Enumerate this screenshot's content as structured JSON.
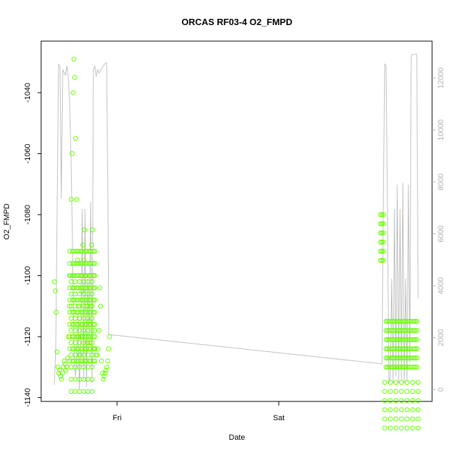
{
  "chart_data": {
    "type": "scatter",
    "title": "ORCAS RF03-4 O2_FMPD",
    "xlabel": "Date",
    "ylabel": "O2_FMPD",
    "x_ticks": [
      "Fri",
      "Sat"
    ],
    "y_ticks": [
      "-1040",
      "-1060",
      "-1080",
      "-1100",
      "-1120",
      "-1140"
    ],
    "y2_ticks": [
      "12000",
      "10000",
      "8000",
      "6000",
      "4000",
      "2000",
      "0"
    ],
    "ylim": [
      -1140,
      -1027
    ],
    "y2lim": [
      0,
      12500
    ],
    "colors": {
      "points": "#66ff00",
      "altitude_line": "#c0c0c0",
      "axis": "#000000",
      "right_axis": "#b0b0b0"
    },
    "series": [
      {
        "kind": "points",
        "segments": [
          [
            [
              0,
              -1102
            ],
            [
              1,
              -1105
            ],
            [
              2,
              -1112
            ],
            [
              3,
              -1125
            ],
            [
              4,
              -1130
            ],
            [
              5,
              -1132
            ],
            [
              6,
              -1131
            ],
            [
              7,
              -1133
            ],
            [
              8,
              -1134
            ],
            [
              9,
              -1132
            ],
            [
              10,
              -1130
            ],
            [
              11,
              -1128
            ],
            [
              12,
              -1129
            ],
            [
              13,
              -1131
            ],
            [
              14,
              -1130
            ],
            [
              15,
              -1127
            ],
            [
              16,
              -1120
            ],
            [
              17,
              -1110
            ],
            [
              18,
              -1100
            ],
            [
              19,
              -1075
            ],
            [
              20,
              -1060
            ],
            [
              21,
              -1040
            ],
            [
              22,
              -1029
            ],
            [
              23,
              -1035
            ],
            [
              24,
              -1055
            ],
            [
              25,
              -1075
            ],
            [
              26,
              -1095
            ],
            [
              27,
              -1110
            ],
            [
              28,
              -1120
            ],
            [
              29,
              -1126
            ],
            [
              30,
              -1120
            ],
            [
              31,
              -1105
            ],
            [
              32,
              -1090
            ],
            [
              33,
              -1095
            ],
            [
              34,
              -1085
            ],
            [
              35,
              -1100
            ],
            [
              36,
              -1110
            ],
            [
              37,
              -1122
            ],
            [
              38,
              -1120
            ],
            [
              39,
              -1115
            ],
            [
              40,
              -1122
            ],
            [
              41,
              -1110
            ],
            [
              42,
              -1090
            ],
            [
              43,
              -1085
            ],
            [
              44,
              -1100
            ],
            [
              45,
              -1118
            ],
            [
              46,
              -1124
            ],
            [
              47,
              -1126
            ],
            [
              48,
              -1126
            ],
            [
              49,
              -1124
            ],
            [
              50,
              -1118
            ],
            [
              51,
              -1104
            ],
            [
              52,
              -1110
            ],
            [
              53,
              -1128
            ],
            [
              54,
              -1132
            ],
            [
              55,
              -1134
            ],
            [
              56,
              -1133
            ],
            [
              57,
              -1132
            ],
            [
              58,
              -1131
            ],
            [
              59,
              -1130
            ],
            [
              60,
              -1128
            ],
            [
              61,
              -1124
            ],
            [
              62,
              -1120
            ]
          ]
        ]
      }
    ]
  }
}
